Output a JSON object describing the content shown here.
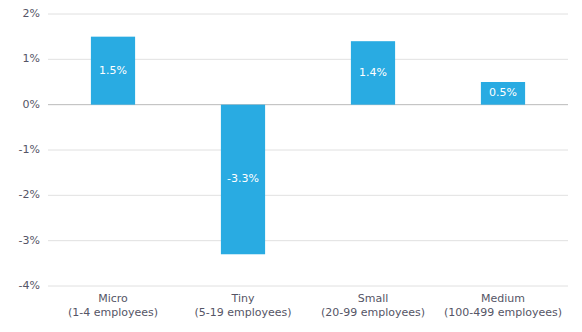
{
  "chart_data": {
    "type": "bar",
    "categories": [
      "Micro\n(1-4 employees)",
      "Tiny\n(5-19 employees)",
      "Small\n(20-99 employees)",
      "Medium\n(100-499 employees)"
    ],
    "values": [
      1.5,
      -3.3,
      1.4,
      0.5
    ],
    "value_labels": [
      "1.5%",
      "-3.3%",
      "1.4%",
      "0.5%"
    ],
    "data_labels": true,
    "color": "#29ABE2",
    "ylim": [
      -4,
      2
    ],
    "yticks": [
      {
        "value": -4,
        "label": "-4%"
      },
      {
        "value": -3,
        "label": "-3%"
      },
      {
        "value": -2,
        "label": "-2%"
      },
      {
        "value": -1,
        "label": "-1%"
      },
      {
        "value": 0,
        "label": "0%"
      },
      {
        "value": 1,
        "label": "1%"
      },
      {
        "value": 2,
        "label": "2%"
      }
    ],
    "grid": true
  }
}
